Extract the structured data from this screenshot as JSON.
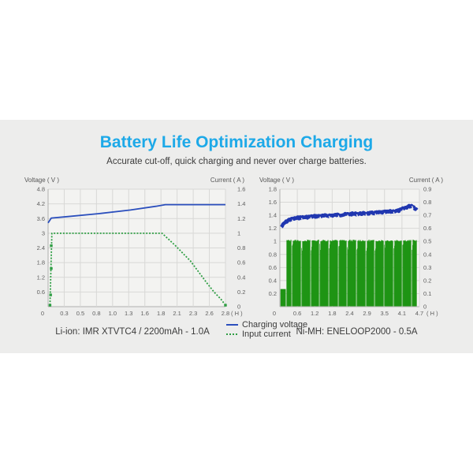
{
  "header": {
    "title": "Battery Life Optimization Charging",
    "subtitle": "Accurate cut-off, quick charging and never over charge batteries."
  },
  "legend": {
    "items": [
      {
        "label": "Charging voltage",
        "color": "#2b4fbd",
        "style": "solid"
      },
      {
        "label": "Input current",
        "color": "#2f9e44",
        "style": "dashed"
      }
    ]
  },
  "captions": {
    "left": "Li-ion: IMR XTVTC4 / 2200mAh - 1.0A",
    "right": "Ni-MH: ENELOOP2000 - 0.5A"
  },
  "colors": {
    "band_bg": "#ededec",
    "plot_bg": "#f3f3f1",
    "grid": "#d8d8d6",
    "axis": "#b0b0ae",
    "title": "#1da9e8",
    "text": "#3b3b3b",
    "tick": "#5f5f5f"
  },
  "chart_data": [
    {
      "type": "line",
      "name": "Li-ion IMR XTVTC4 charging curve",
      "left_axis": {
        "label": "Voltage ( V )",
        "max": 4.8,
        "ticks": [
          "4.8",
          "4.2",
          "3.6",
          "3",
          "2.4",
          "1.8",
          "1.2",
          "0.6"
        ]
      },
      "right_axis": {
        "label": "Current ( A )",
        "max": 1.6,
        "ticks": [
          "1.6",
          "1.4",
          "1.2",
          "1",
          "0.8",
          "0.6",
          "0.4",
          "0.2",
          "0"
        ]
      },
      "x_axis": {
        "unit": "( H )",
        "max": 2.8,
        "ticks": [
          "0",
          "0.3",
          "0.5",
          "0.8",
          "1.0",
          "1.3",
          "1.6",
          "1.8",
          "2.1",
          "2.3",
          "2.6",
          "2.8"
        ]
      },
      "series": [
        {
          "name": "Charging voltage",
          "axis": "voltage",
          "style": "solid",
          "color": "#2b4fbd",
          "points": [
            [
              0,
              3.42
            ],
            [
              0.05,
              3.62
            ],
            [
              0.3,
              3.68
            ],
            [
              0.8,
              3.8
            ],
            [
              1.3,
              3.95
            ],
            [
              1.7,
              4.1
            ],
            [
              1.85,
              4.17
            ],
            [
              2.8,
              4.17
            ]
          ]
        },
        {
          "name": "Input current",
          "axis": "current",
          "style": "dashed",
          "color": "#2f9e44",
          "points": [
            [
              0.03,
              0.02
            ],
            [
              0.06,
              1.0
            ],
            [
              1.8,
              1.0
            ],
            [
              2.0,
              0.84
            ],
            [
              2.25,
              0.62
            ],
            [
              2.5,
              0.33
            ],
            [
              2.62,
              0.2
            ],
            [
              2.73,
              0.1
            ],
            [
              2.8,
              0.02
            ]
          ],
          "markers": [
            [
              0.03,
              0.02
            ],
            [
              0.04,
              0.16
            ],
            [
              0.05,
              0.52
            ],
            [
              0.05,
              0.83
            ],
            [
              2.8,
              0.02
            ]
          ]
        }
      ]
    },
    {
      "type": "line",
      "name": "Ni-MH ENELOOP2000 charging curve",
      "left_axis": {
        "label": "Voltage ( V )",
        "max": 1.8,
        "ticks": [
          "1.8",
          "1.6",
          "1.4",
          "1.2",
          "1",
          "0.8",
          "0.6",
          "0.4",
          "0.2"
        ]
      },
      "right_axis": {
        "label": "Current ( A )",
        "max": 0.9,
        "ticks": [
          "0.9",
          "0.8",
          "0.7",
          "0.6",
          "0.5",
          "0.4",
          "0.3",
          "0.2",
          "0.1",
          "0"
        ]
      },
      "x_axis": {
        "unit": "( H )",
        "max": 4.7,
        "ticks": [
          "0",
          "0.6",
          "1.2",
          "1.8",
          "2.4",
          "2.9",
          "3.5",
          "4.1",
          "4.7"
        ]
      },
      "series": [
        {
          "name": "Charging voltage",
          "axis": "voltage",
          "style": "noisy-band",
          "color": "#2037b0",
          "noise": 2.2,
          "points": [
            [
              0.05,
              1.22
            ],
            [
              0.15,
              1.28
            ],
            [
              0.3,
              1.33
            ],
            [
              0.6,
              1.36
            ],
            [
              1.2,
              1.385
            ],
            [
              1.8,
              1.4
            ],
            [
              2.4,
              1.42
            ],
            [
              3.0,
              1.43
            ],
            [
              3.6,
              1.45
            ],
            [
              4.0,
              1.47
            ],
            [
              4.3,
              1.53
            ],
            [
              4.45,
              1.55
            ],
            [
              4.62,
              1.48
            ]
          ]
        },
        {
          "name": "Input current",
          "axis": "current",
          "style": "pulse-fill",
          "color": "#1e9414",
          "level": 0.5,
          "start": 0.24,
          "end": 4.62,
          "first_gap_offset": 0.18,
          "gap_spacing": 0.31,
          "gap_width": 0.04,
          "initial_block": {
            "start": 0.02,
            "end": 0.2,
            "level": 0.135
          }
        }
      ]
    }
  ]
}
